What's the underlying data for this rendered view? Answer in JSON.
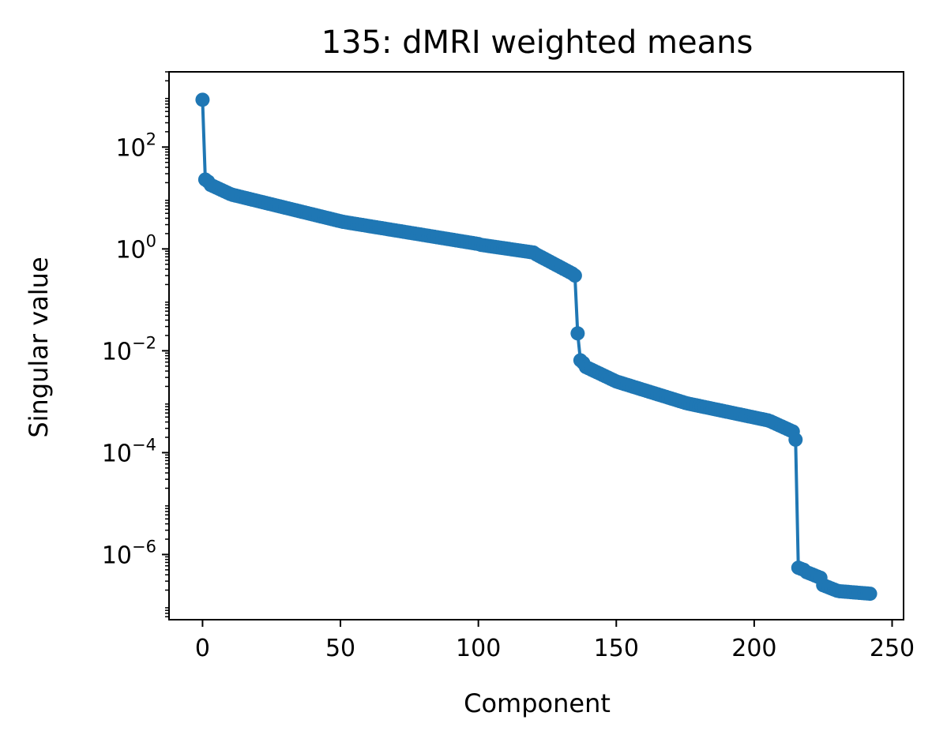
{
  "chart_data": {
    "type": "line",
    "title": "135: dMRI weighted means",
    "xlabel": "Component",
    "ylabel": "Singular value",
    "xlim": [
      -12.15,
      254.15
    ],
    "ylim": [
      5.25e-08,
      3000
    ],
    "yscale": "log",
    "grid": false,
    "legend": "none",
    "color": "#1f77b4",
    "xticks": [
      {
        "value": 0,
        "label": "0"
      },
      {
        "value": 50,
        "label": "50"
      },
      {
        "value": 100,
        "label": "100"
      },
      {
        "value": 150,
        "label": "150"
      },
      {
        "value": 200,
        "label": "200"
      },
      {
        "value": 250,
        "label": "250"
      }
    ],
    "yticks": [
      {
        "value": 100,
        "base": "10",
        "exp": "2"
      },
      {
        "value": 1,
        "base": "10",
        "exp": "0"
      },
      {
        "value": 0.01,
        "base": "10",
        "exp": "−2"
      },
      {
        "value": 0.0001,
        "base": "10",
        "exp": "−4"
      },
      {
        "value": 1e-06,
        "base": "10",
        "exp": "−6"
      }
    ],
    "series": [
      {
        "segments": [
          {
            "x_start": 0,
            "x_end": 0,
            "y_start": 850,
            "y_end": 850
          },
          {
            "x_start": 1,
            "x_end": 1,
            "y_start": 23,
            "y_end": 23
          },
          {
            "x_start": 2,
            "x_end": 2,
            "y_start": 21,
            "y_end": 21
          },
          {
            "x_start": 3,
            "x_end": 10,
            "y_start": 18,
            "y_end": 12
          },
          {
            "x_start": 11,
            "x_end": 50,
            "y_start": 11.5,
            "y_end": 3.5
          },
          {
            "x_start": 51,
            "x_end": 100,
            "y_start": 3.4,
            "y_end": 1.25
          },
          {
            "x_start": 101,
            "x_end": 120,
            "y_start": 1.2,
            "y_end": 0.85
          },
          {
            "x_start": 121,
            "x_end": 134,
            "y_start": 0.78,
            "y_end": 0.33
          },
          {
            "x_start": 135,
            "x_end": 135,
            "y_start": 0.3,
            "y_end": 0.3
          },
          {
            "x_start": 136,
            "x_end": 136,
            "y_start": 0.022,
            "y_end": 0.022
          },
          {
            "x_start": 137,
            "x_end": 138,
            "y_start": 0.0065,
            "y_end": 0.0058
          },
          {
            "x_start": 139,
            "x_end": 150,
            "y_start": 0.0048,
            "y_end": 0.0025
          },
          {
            "x_start": 151,
            "x_end": 175,
            "y_start": 0.0024,
            "y_end": 0.00095
          },
          {
            "x_start": 176,
            "x_end": 205,
            "y_start": 0.00092,
            "y_end": 0.00043
          },
          {
            "x_start": 206,
            "x_end": 214,
            "y_start": 0.00041,
            "y_end": 0.00026
          },
          {
            "x_start": 215,
            "x_end": 215,
            "y_start": 0.00018,
            "y_end": 0.00018
          },
          {
            "x_start": 216,
            "x_end": 218,
            "y_start": 5.5e-07,
            "y_end": 5e-07
          },
          {
            "x_start": 219,
            "x_end": 224,
            "y_start": 4.5e-07,
            "y_end": 3.5e-07
          },
          {
            "x_start": 225,
            "x_end": 230,
            "y_start": 2.5e-07,
            "y_end": 1.95e-07
          },
          {
            "x_start": 231,
            "x_end": 242,
            "y_start": 1.9e-07,
            "y_end": 1.7e-07
          }
        ]
      }
    ]
  }
}
